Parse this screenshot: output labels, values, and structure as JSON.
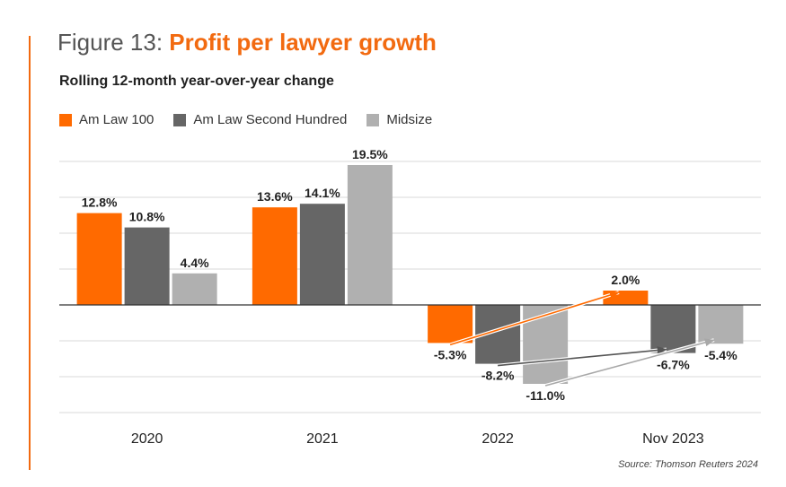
{
  "header": {
    "title_prefix": "Figure 13: ",
    "title_main": "Profit per lawyer growth",
    "subtitle": "Rolling 12-month year-over-year change"
  },
  "colors": {
    "accent": "#f26a10",
    "series": [
      "#ff6a00",
      "#666666",
      "#b0b0b0"
    ],
    "grid": "#d9d9d9",
    "axis": "#333333",
    "arrows": [
      "#ff6a00",
      "#555555",
      "#a8a8a8"
    ]
  },
  "source": "Source: Thomson Reuters 2024",
  "chart_data": {
    "type": "bar",
    "title": "Profit per lawyer growth",
    "subtitle": "Rolling 12-month year-over-year change",
    "categories": [
      "2020",
      "2021",
      "2022",
      "Nov 2023"
    ],
    "series": [
      {
        "name": "Am Law 100",
        "values": [
          12.8,
          13.6,
          -5.3,
          2.0
        ],
        "labels": [
          "12.8%",
          "13.6%",
          "-5.3%",
          "2.0%"
        ]
      },
      {
        "name": "Am Law Second Hundred",
        "values": [
          10.8,
          14.1,
          -8.2,
          -6.7
        ],
        "labels": [
          "10.8%",
          "14.1%",
          "-8.2%",
          "-6.7%"
        ]
      },
      {
        "name": "Midsize",
        "values": [
          4.4,
          19.5,
          -11.0,
          -5.4
        ],
        "labels": [
          "4.4%",
          "19.5%",
          "-11.0%",
          "-5.4%"
        ]
      }
    ],
    "ylim": [
      -15,
      20
    ],
    "grid_step": 5,
    "grid": true,
    "legend": "top-left",
    "annotations": [
      {
        "type": "arrow",
        "series": 0,
        "from": "2022",
        "to": "Nov 2023"
      },
      {
        "type": "arrow",
        "series": 1,
        "from": "2022",
        "to": "Nov 2023"
      },
      {
        "type": "arrow",
        "series": 2,
        "from": "2022",
        "to": "Nov 2023"
      }
    ]
  }
}
